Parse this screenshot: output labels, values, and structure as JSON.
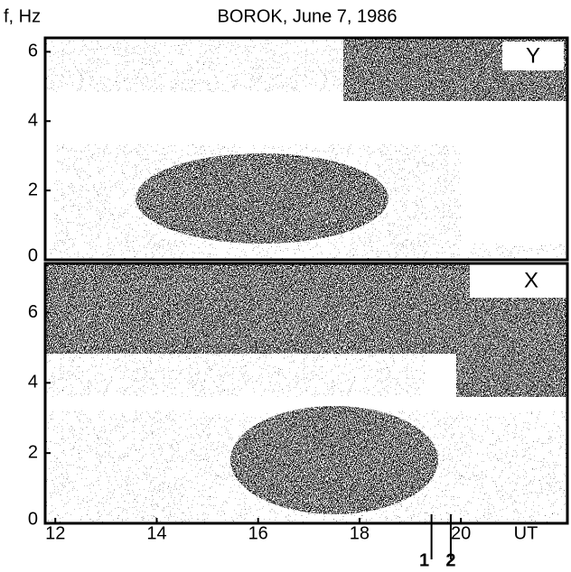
{
  "chart_data": [
    {
      "type": "spectrogram",
      "title": "BOROK,  June 7,    1986",
      "ylabel": "f, Hz",
      "label": "Y",
      "xlim": [
        11.8,
        22.1
      ],
      "ylim": [
        0,
        6.4
      ],
      "yticks": [
        0,
        2,
        4,
        6
      ]
    },
    {
      "type": "spectrogram",
      "label": "X",
      "xlabel": "UT",
      "xlim": [
        11.8,
        22.1
      ],
      "xticks": [
        12,
        14,
        16,
        18,
        20
      ],
      "ylim": [
        0,
        7.4
      ],
      "yticks": [
        0,
        2,
        4,
        6
      ],
      "markers": [
        {
          "x": 19.42,
          "label": "1"
        },
        {
          "x": 19.8,
          "label": "2"
        }
      ]
    }
  ]
}
